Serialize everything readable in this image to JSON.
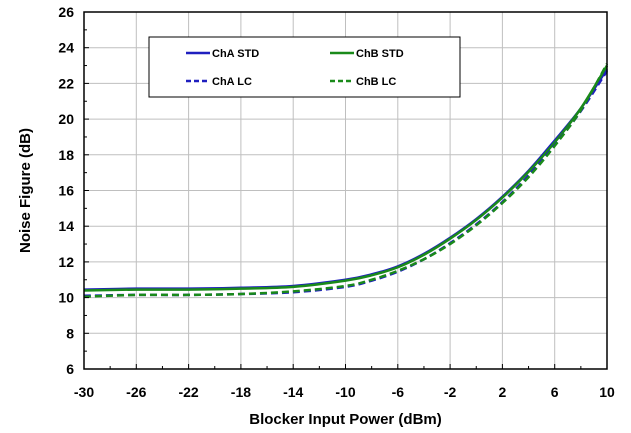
{
  "chart_data": {
    "type": "line",
    "title": "",
    "xlabel": "Blocker Input Power (dBm)",
    "ylabel": "Noise Figure (dB)",
    "xlim": [
      -30,
      10
    ],
    "ylim": [
      6,
      26
    ],
    "xticks": [
      -30,
      -26,
      -22,
      -18,
      -14,
      -10,
      -6,
      -2,
      2,
      6,
      10
    ],
    "yticks": [
      6,
      8,
      10,
      12,
      14,
      16,
      18,
      20,
      22,
      24,
      26
    ],
    "grid": true,
    "legend_position": "top-center",
    "series": [
      {
        "name": "ChA STD",
        "color": "#1f1fbf",
        "dash": "solid",
        "x": [
          -30,
          -26,
          -22,
          -18,
          -14,
          -10,
          -8,
          -6,
          -4,
          -2,
          0,
          2,
          4,
          6,
          8,
          10
        ],
        "y": [
          10.45,
          10.5,
          10.5,
          10.55,
          10.65,
          11.0,
          11.3,
          11.75,
          12.45,
          13.35,
          14.4,
          15.65,
          17.1,
          18.8,
          20.6,
          22.8
        ]
      },
      {
        "name": "ChB STD",
        "color": "#1a8a1a",
        "dash": "solid",
        "x": [
          -30,
          -26,
          -22,
          -18,
          -14,
          -10,
          -8,
          -6,
          -4,
          -2,
          0,
          2,
          4,
          6,
          8,
          10
        ],
        "y": [
          10.4,
          10.45,
          10.45,
          10.5,
          10.6,
          10.95,
          11.25,
          11.7,
          12.4,
          13.3,
          14.35,
          15.6,
          17.05,
          18.7,
          20.6,
          23.0
        ]
      },
      {
        "name": "ChA LC",
        "color": "#1f1fbf",
        "dash": "dashed",
        "x": [
          -30,
          -26,
          -22,
          -18,
          -14,
          -10,
          -8,
          -6,
          -4,
          -2,
          0,
          2,
          4,
          6,
          8,
          10
        ],
        "y": [
          10.1,
          10.15,
          10.15,
          10.2,
          10.3,
          10.6,
          10.95,
          11.45,
          12.15,
          13.05,
          14.1,
          15.35,
          16.85,
          18.55,
          20.45,
          22.7
        ]
      },
      {
        "name": "ChB LC",
        "color": "#1a8a1a",
        "dash": "dashed",
        "x": [
          -30,
          -26,
          -22,
          -18,
          -14,
          -10,
          -8,
          -6,
          -4,
          -2,
          0,
          2,
          4,
          6,
          8,
          10
        ],
        "y": [
          10.05,
          10.15,
          10.15,
          10.2,
          10.35,
          10.65,
          11.0,
          11.5,
          12.15,
          13.0,
          14.05,
          15.3,
          16.75,
          18.5,
          20.5,
          23.1
        ]
      }
    ]
  }
}
